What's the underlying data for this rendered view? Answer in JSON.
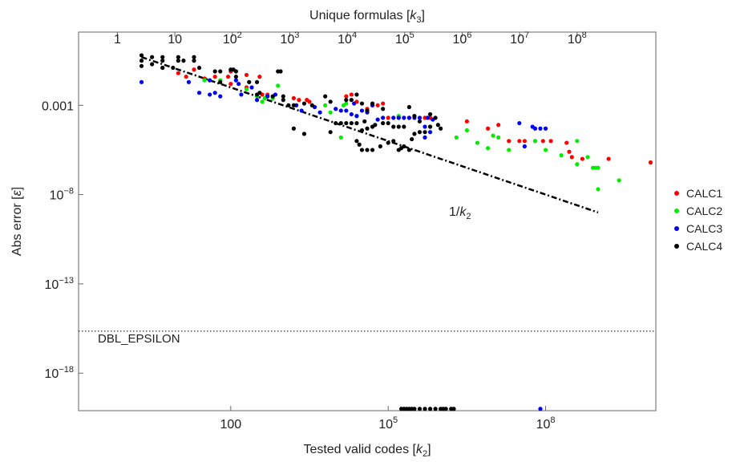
{
  "chart_data": {
    "type": "scatter",
    "x_scale": "log10",
    "y_scale": "log10",
    "xlabel": "Tested valid codes [k2]",
    "xlabel_parts": {
      "main": "Tested valid codes [",
      "var": "k",
      "sub": "2",
      "end": "]"
    },
    "top_xlabel_parts": {
      "main": "Unique formulas [",
      "var": "k",
      "sub": "3",
      "end": "]"
    },
    "ylabel_parts": {
      "main": "Abs error [",
      "var": "ε",
      "end": "]"
    },
    "x_log_range": [
      -0.9,
      10.1
    ],
    "y_log_range": [
      -20.1,
      1.1
    ],
    "bottom_ticks": [
      {
        "exp": 2,
        "label": "100"
      },
      {
        "exp": 5,
        "base": "10",
        "sup": "5"
      },
      {
        "exp": 8,
        "base": "10",
        "sup": "8"
      }
    ],
    "top_ticks": [
      {
        "exp": 0,
        "label": "1"
      },
      {
        "exp": 1,
        "label": "10"
      },
      {
        "exp": 2,
        "base": "10",
        "sup": "2"
      },
      {
        "exp": 3,
        "base": "10",
        "sup": "3"
      },
      {
        "exp": 4,
        "base": "10",
        "sup": "4"
      },
      {
        "exp": 5,
        "base": "10",
        "sup": "5"
      },
      {
        "exp": 6,
        "base": "10",
        "sup": "6"
      },
      {
        "exp": 7,
        "base": "10",
        "sup": "7"
      },
      {
        "exp": 8,
        "base": "10",
        "sup": "8"
      }
    ],
    "top_axis_log_map": {
      "a": -0.16,
      "b": 1.095
    },
    "left_ticks": [
      {
        "exp": -3,
        "label": "0.001"
      },
      {
        "exp": -8,
        "base": "10",
        "sup": "−8"
      },
      {
        "exp": -13,
        "base": "10",
        "sup": "−13"
      },
      {
        "exp": -18,
        "base": "10",
        "sup": "−18"
      }
    ],
    "reference_line": {
      "label_var": "k",
      "label_pre": "1/",
      "label_sub": "2",
      "log_x": [
        0.3,
        9.0
      ],
      "log_y": [
        -0.3,
        -9.0
      ]
    },
    "hline": {
      "label": "DBL_EPSILON",
      "log_y": -15.65
    },
    "legend_position": "right",
    "series": [
      {
        "name": "CALC1",
        "color": "#ff0000",
        "points": [
          [
            0.7,
            -0.9
          ],
          [
            1.0,
            -1.2
          ],
          [
            1.15,
            -1.4
          ],
          [
            1.3,
            -1.0
          ],
          [
            1.5,
            -1.5
          ],
          [
            1.7,
            -1.4
          ],
          [
            1.95,
            -1.4
          ],
          [
            2.0,
            -1.1
          ],
          [
            2.0,
            -1.8
          ],
          [
            2.3,
            -1.3
          ],
          [
            2.3,
            -2.0
          ],
          [
            2.55,
            -1.4
          ],
          [
            2.6,
            -2.4
          ],
          [
            2.7,
            -2.4
          ],
          [
            3.2,
            -2.6
          ],
          [
            3.3,
            -2.7
          ],
          [
            3.45,
            -2.7
          ],
          [
            3.5,
            -2.8
          ],
          [
            4.2,
            -2.5
          ],
          [
            4.3,
            -2.4
          ],
          [
            4.4,
            -2.8
          ],
          [
            4.6,
            -3.2
          ],
          [
            4.7,
            -3.0
          ],
          [
            4.8,
            -3.0
          ],
          [
            4.9,
            -2.9
          ],
          [
            5.0,
            -3.7
          ],
          [
            5.2,
            -3.7
          ],
          [
            5.4,
            -3.7
          ],
          [
            5.7,
            -3.7
          ],
          [
            5.8,
            -3.7
          ],
          [
            6.5,
            -3.9
          ],
          [
            6.9,
            -4.3
          ],
          [
            7.1,
            -4.1
          ],
          [
            7.3,
            -5.0
          ],
          [
            7.5,
            -5.0
          ],
          [
            7.6,
            -5.0
          ],
          [
            7.8,
            -5.0
          ],
          [
            7.95,
            -5.0
          ],
          [
            8.1,
            -5.0
          ],
          [
            8.4,
            -5.1
          ],
          [
            8.45,
            -5.6
          ],
          [
            8.5,
            -5.9
          ],
          [
            8.7,
            -6.0
          ],
          [
            9.2,
            -6.0
          ],
          [
            10.0,
            -6.2
          ]
        ]
      },
      {
        "name": "CALC2",
        "color": "#00ee00",
        "points": [
          [
            1.5,
            -1.6
          ],
          [
            1.8,
            -1.6
          ],
          [
            2.3,
            -2.1
          ],
          [
            2.5,
            -2.5
          ],
          [
            2.6,
            -2.8
          ],
          [
            2.65,
            -2.6
          ],
          [
            2.8,
            -2.6
          ],
          [
            2.9,
            -1.9
          ],
          [
            3.8,
            -3.0
          ],
          [
            3.9,
            -3.4
          ],
          [
            4.1,
            -4.8
          ],
          [
            4.15,
            -3.0
          ],
          [
            4.2,
            -2.9
          ],
          [
            4.4,
            -3.6
          ],
          [
            4.9,
            -4.0
          ],
          [
            5.2,
            -3.6
          ],
          [
            5.8,
            -4.2
          ],
          [
            6.3,
            -4.8
          ],
          [
            6.5,
            -4.4
          ],
          [
            6.7,
            -5.1
          ],
          [
            6.9,
            -5.4
          ],
          [
            7.0,
            -4.7
          ],
          [
            7.1,
            -4.8
          ],
          [
            7.3,
            -5.5
          ],
          [
            7.8,
            -5.0
          ],
          [
            8.0,
            -5.5
          ],
          [
            8.3,
            -5.8
          ],
          [
            8.6,
            -6.3
          ],
          [
            8.6,
            -5.0
          ],
          [
            8.8,
            -5.9
          ],
          [
            8.9,
            -6.5
          ],
          [
            9.0,
            -6.5
          ],
          [
            8.95,
            -6.5
          ],
          [
            9.0,
            -7.7
          ],
          [
            9.4,
            -7.2
          ]
        ]
      },
      {
        "name": "CALC3",
        "color": "#0000ee",
        "points": [
          [
            0.3,
            -1.7
          ],
          [
            1.2,
            -1.7
          ],
          [
            1.4,
            -2.3
          ],
          [
            1.6,
            -1.6
          ],
          [
            1.6,
            -2.4
          ],
          [
            1.7,
            -2.3
          ],
          [
            1.8,
            -2.5
          ],
          [
            2.1,
            -1.6
          ],
          [
            2.15,
            -1.8
          ],
          [
            2.2,
            -2.4
          ],
          [
            2.4,
            -2.0
          ],
          [
            2.5,
            -2.7
          ],
          [
            2.7,
            -2.5
          ],
          [
            2.85,
            -2.4
          ],
          [
            3.25,
            -3.0
          ],
          [
            3.35,
            -3.3
          ],
          [
            3.6,
            -3.1
          ],
          [
            3.7,
            -3.4
          ],
          [
            4.0,
            -3.2
          ],
          [
            4.1,
            -3.3
          ],
          [
            4.2,
            -3.3
          ],
          [
            4.3,
            -3.5
          ],
          [
            4.35,
            -2.9
          ],
          [
            4.4,
            -3.6
          ],
          [
            4.5,
            -3.3
          ],
          [
            4.6,
            -3.4
          ],
          [
            4.7,
            -3.0
          ],
          [
            4.8,
            -3.8
          ],
          [
            4.9,
            -3.7
          ],
          [
            5.1,
            -3.7
          ],
          [
            5.2,
            -3.7
          ],
          [
            5.3,
            -3.7
          ],
          [
            5.4,
            -3.7
          ],
          [
            5.5,
            -3.7
          ],
          [
            5.6,
            -3.7
          ],
          [
            5.7,
            -4.2
          ],
          [
            5.7,
            -4.8
          ],
          [
            5.75,
            -3.7
          ],
          [
            5.8,
            -4.5
          ],
          [
            5.85,
            -3.8
          ],
          [
            7.5,
            -4.0
          ],
          [
            7.6,
            -5.3
          ],
          [
            7.75,
            -4.2
          ],
          [
            7.8,
            -4.3
          ],
          [
            7.9,
            -4.3
          ],
          [
            8.0,
            -4.3
          ],
          [
            7.9,
            -20.0
          ]
        ]
      },
      {
        "name": "CALC4",
        "color": "#000000",
        "points": [
          [
            0.3,
            -0.2
          ],
          [
            0.3,
            -0.5
          ],
          [
            0.3,
            -0.8
          ],
          [
            0.5,
            -0.3
          ],
          [
            0.5,
            -0.7
          ],
          [
            0.7,
            -0.3
          ],
          [
            0.7,
            -0.5
          ],
          [
            0.7,
            -0.9
          ],
          [
            0.9,
            -0.9
          ],
          [
            1.0,
            -0.3
          ],
          [
            1.0,
            -0.5
          ],
          [
            1.1,
            -0.5
          ],
          [
            1.3,
            -0.3
          ],
          [
            1.3,
            -0.5
          ],
          [
            1.4,
            -0.9
          ],
          [
            1.7,
            -1.1
          ],
          [
            1.8,
            -1.1
          ],
          [
            1.8,
            -1.7
          ],
          [
            2.0,
            -1.0
          ],
          [
            2.05,
            -1.0
          ],
          [
            2.1,
            -1.1
          ],
          [
            2.1,
            -1.4
          ],
          [
            2.35,
            -1.7
          ],
          [
            2.5,
            -1.7
          ],
          [
            2.5,
            -2.4
          ],
          [
            2.55,
            -2.3
          ],
          [
            2.9,
            -1.1
          ],
          [
            2.95,
            -1.1
          ],
          [
            2.8,
            -2.5
          ],
          [
            3.0,
            -2.5
          ],
          [
            3.0,
            -2.7
          ],
          [
            3.1,
            -3.0
          ],
          [
            3.2,
            -3.0
          ],
          [
            3.4,
            -2.9
          ],
          [
            3.55,
            -3.0
          ],
          [
            3.8,
            -2.5
          ],
          [
            3.9,
            -2.8
          ],
          [
            4.2,
            -2.7
          ],
          [
            4.3,
            -2.7
          ],
          [
            4.4,
            -2.4
          ],
          [
            4.5,
            -2.9
          ],
          [
            4.6,
            -3.3
          ],
          [
            4.7,
            -2.9
          ],
          [
            4.9,
            -3.2
          ],
          [
            3.2,
            -4.3
          ],
          [
            3.4,
            -4.6
          ],
          [
            3.9,
            -4.5
          ],
          [
            4.0,
            -4.0
          ],
          [
            4.1,
            -4.0
          ],
          [
            4.2,
            -4.0
          ],
          [
            4.3,
            -4.0
          ],
          [
            4.4,
            -4.0
          ],
          [
            4.5,
            -4.4
          ],
          [
            4.55,
            -3.9
          ],
          [
            4.6,
            -4.3
          ],
          [
            4.7,
            -4.2
          ],
          [
            4.75,
            -4.1
          ],
          [
            4.9,
            -4.0
          ],
          [
            5.0,
            -4.0
          ],
          [
            5.1,
            -4.2
          ],
          [
            5.2,
            -4.2
          ],
          [
            5.3,
            -4.2
          ],
          [
            5.5,
            -4.6
          ],
          [
            5.6,
            -4.5
          ],
          [
            5.7,
            -4.5
          ],
          [
            5.8,
            -4.2
          ],
          [
            5.95,
            -4.1
          ],
          [
            6.0,
            -4.3
          ],
          [
            5.9,
            -3.7
          ],
          [
            5.4,
            -3.1
          ],
          [
            5.5,
            -3.6
          ],
          [
            5.6,
            -3.9
          ],
          [
            5.8,
            -3.5
          ],
          [
            4.4,
            -5.0
          ],
          [
            4.45,
            -5.2
          ],
          [
            4.5,
            -5.5
          ],
          [
            4.6,
            -5.5
          ],
          [
            4.7,
            -5.5
          ],
          [
            4.85,
            -5.3
          ],
          [
            5.0,
            -5.1
          ],
          [
            5.1,
            -5.0
          ],
          [
            5.2,
            -5.5
          ],
          [
            5.25,
            -5.4
          ],
          [
            5.3,
            -5.3
          ],
          [
            5.4,
            -5.5
          ],
          [
            5.45,
            -4.9
          ],
          [
            5.25,
            -20.0
          ],
          [
            5.3,
            -20.0
          ],
          [
            5.35,
            -20.0
          ],
          [
            5.4,
            -20.0
          ],
          [
            5.45,
            -20.0
          ],
          [
            5.5,
            -20.0
          ],
          [
            5.6,
            -20.0
          ],
          [
            5.7,
            -20.0
          ],
          [
            5.8,
            -20.0
          ],
          [
            5.9,
            -20.0
          ],
          [
            6.0,
            -20.0
          ],
          [
            6.05,
            -20.0
          ],
          [
            6.1,
            -20.0
          ],
          [
            6.2,
            -20.0
          ],
          [
            6.25,
            -20.0
          ]
        ]
      }
    ]
  }
}
